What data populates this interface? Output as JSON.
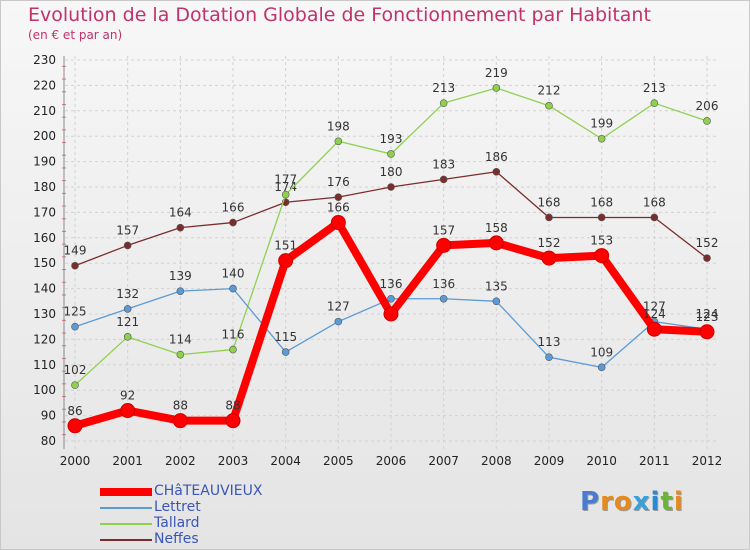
{
  "chart_data": {
    "type": "line",
    "title": "Evolution de la Dotation Globale de Fonctionnement par Habitant",
    "subtitle": "(en € et par an)",
    "x": [
      "2000",
      "2001",
      "2002",
      "2003",
      "2004",
      "2005",
      "2006",
      "2007",
      "2008",
      "2009",
      "2010",
      "2011",
      "2012"
    ],
    "ylim": [
      80,
      230
    ],
    "yticks": [
      80,
      90,
      100,
      110,
      120,
      130,
      140,
      150,
      160,
      170,
      180,
      190,
      200,
      210,
      220,
      230
    ],
    "grid": true,
    "legend_position": "bottom-left",
    "series": [
      {
        "name": "CHâTEAUVIEUX",
        "color": "#ff0000",
        "values": [
          86,
          92,
          88,
          88,
          151,
          166,
          130,
          157,
          158,
          152,
          153,
          124,
          123
        ],
        "labels": [
          "86",
          "92",
          "88",
          "88",
          "151",
          "166",
          "",
          "157",
          "158",
          "152",
          "153",
          "124",
          "123"
        ]
      },
      {
        "name": "Lettret",
        "color": "#5b9bd5",
        "values": [
          125,
          132,
          139,
          140,
          115,
          127,
          136,
          136,
          135,
          113,
          109,
          127,
          124
        ],
        "labels": [
          "125",
          "132",
          "139",
          "140",
          "115",
          "127",
          "136",
          "136",
          "135",
          "113",
          "109",
          "127",
          "124"
        ]
      },
      {
        "name": "Tallard",
        "color": "#8fd14f",
        "values": [
          102,
          121,
          114,
          116,
          177,
          198,
          193,
          213,
          219,
          212,
          199,
          213,
          206
        ],
        "labels": [
          "102",
          "121",
          "114",
          "116",
          "177",
          "198",
          "193",
          "213",
          "219",
          "212",
          "199",
          "213",
          "206"
        ]
      },
      {
        "name": "Neffes",
        "color": "#7b2d2d",
        "values": [
          149,
          157,
          164,
          166,
          174,
          176,
          180,
          183,
          186,
          168,
          168,
          168,
          152
        ],
        "labels": [
          "149",
          "157",
          "164",
          "166",
          "174",
          "176",
          "180",
          "183",
          "186",
          "168",
          "168",
          "168",
          "152"
        ]
      }
    ]
  },
  "logo": {
    "letters": [
      "P",
      "r",
      "o",
      "x",
      "i",
      "t",
      "i"
    ]
  },
  "colors": {
    "title": "#c0336a",
    "logo_letters": [
      "#4a7bd0",
      "#e58a1f",
      "#e58a1f",
      "#3aa0d8",
      "#2a8ad0",
      "#6bb33a",
      "#e58a1f"
    ]
  }
}
